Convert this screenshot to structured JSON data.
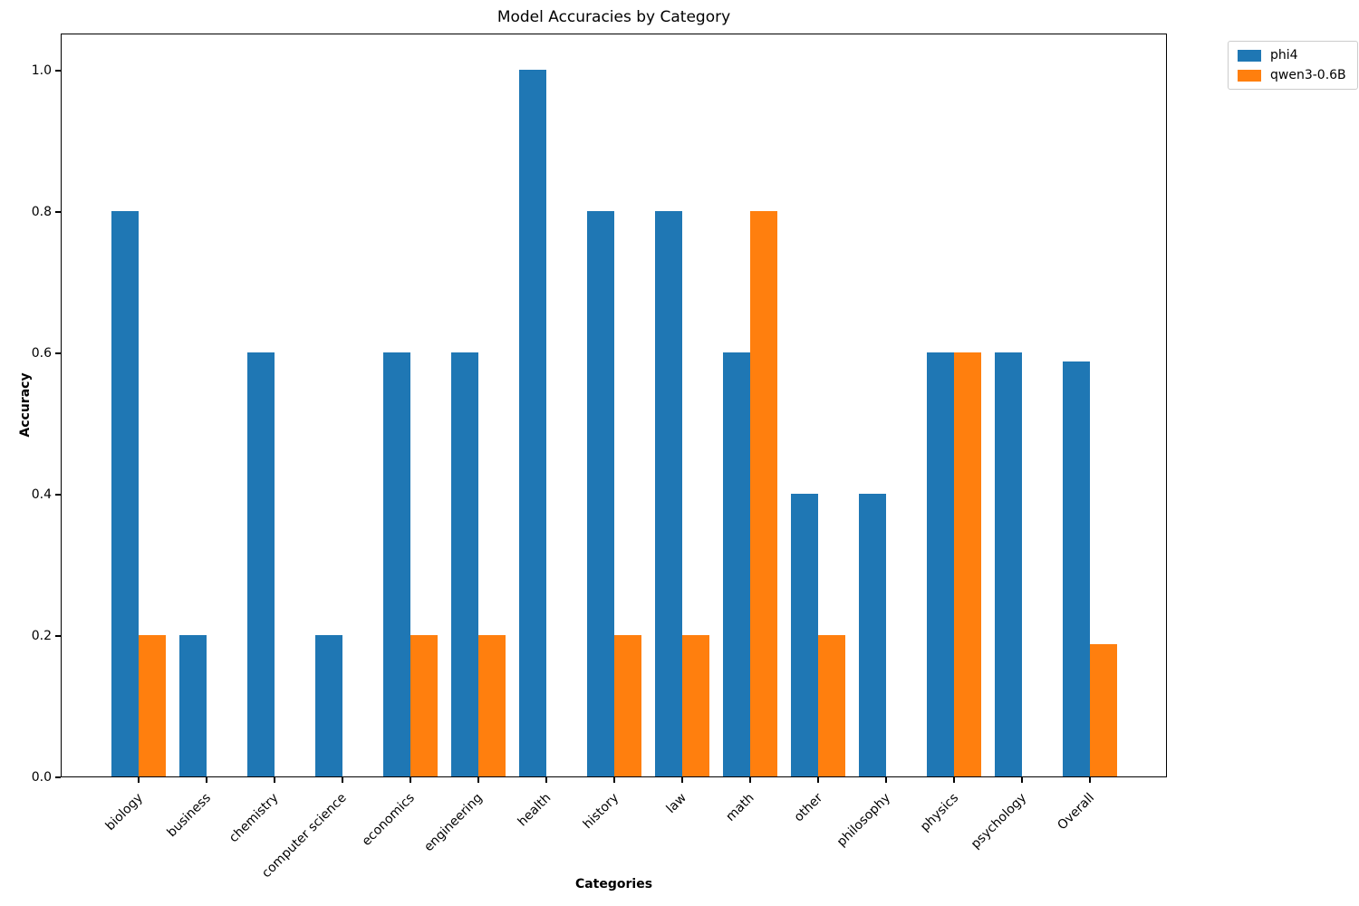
{
  "title": "Model Accuracies by Category",
  "chart_data": {
    "type": "bar",
    "title": "Model Accuracies by Category",
    "xlabel": "Categories",
    "ylabel": "Accuracy",
    "categories": [
      "biology",
      "business",
      "chemistry",
      "computer science",
      "economics",
      "engineering",
      "health",
      "history",
      "law",
      "math",
      "other",
      "philosophy",
      "physics",
      "psychology",
      "Overall"
    ],
    "series": [
      {
        "name": "phi4",
        "color": "#1f77b4",
        "values": [
          0.8,
          0.2,
          0.6,
          0.2,
          0.6,
          0.6,
          1.0,
          0.8,
          0.8,
          0.6,
          0.4,
          0.4,
          0.6,
          0.6,
          0.587
        ]
      },
      {
        "name": "qwen3-0.6B",
        "color": "#ff7f0e",
        "values": [
          0.2,
          0.0,
          0.0,
          0.0,
          0.2,
          0.2,
          0.0,
          0.2,
          0.2,
          0.8,
          0.2,
          0.0,
          0.6,
          0.0,
          0.187
        ]
      }
    ],
    "ylim": [
      0,
      1.05
    ],
    "yticks": [
      0.0,
      0.2,
      0.4,
      0.6,
      0.8,
      1.0
    ],
    "x_tick_rotation": 45,
    "grid": false,
    "legend_position": "outside-upper-right"
  }
}
